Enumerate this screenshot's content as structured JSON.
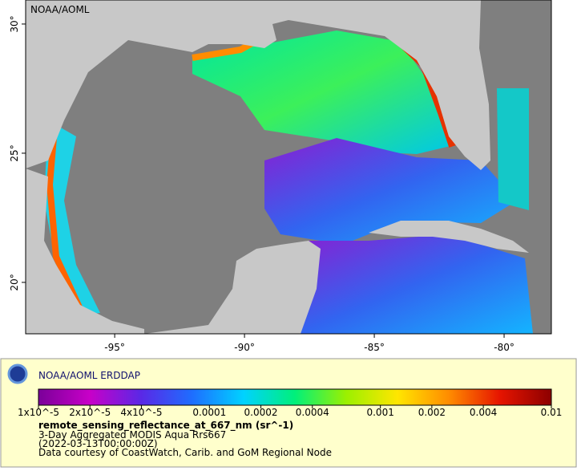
{
  "map": {
    "label": "NOAA/AOML",
    "xlim": [
      -98.43,
      -78.18
    ],
    "ylim": [
      18.01,
      30.93
    ],
    "xticks": [
      {
        "value": -95,
        "label": "-95°"
      },
      {
        "value": -90,
        "label": "-90°"
      },
      {
        "value": -85,
        "label": "-85°"
      },
      {
        "value": -80,
        "label": "-80°"
      }
    ],
    "yticks": [
      {
        "value": 20,
        "label": "20°"
      },
      {
        "value": 25,
        "label": "25°"
      },
      {
        "value": 30,
        "label": "30°"
      }
    ]
  },
  "legend": {
    "title": "NOAA/AOML ERDDAP",
    "colorbar": {
      "scale": "log",
      "lim": [
        1e-05,
        0.01
      ],
      "colors": [
        "#7a0099",
        "#c800c8",
        "#5a28e6",
        "#1e6eff",
        "#00d2ff",
        "#00f07a",
        "#9bf000",
        "#ffe600",
        "#ff8c00",
        "#e61400",
        "#8c0000"
      ],
      "ticks": [
        {
          "value": 1e-05,
          "label": "1x10^-5"
        },
        {
          "value": 2e-05,
          "label": "2x10^-5"
        },
        {
          "value": 4e-05,
          "label": "4x10^-5"
        },
        0.0001,
        0.0002,
        0.0004,
        0.001,
        0.002,
        0.004,
        0.01
      ]
    },
    "variable": "remote_sensing_reflectance_at_667_nm (sr^-1)",
    "lines": [
      "3-Day Aggregated MODIS Aqua Rrs667",
      "(2022-03-13T00:00:00Z)",
      "Data courtesy of CoastWatch, Carib. and GoM Regional Node"
    ]
  }
}
